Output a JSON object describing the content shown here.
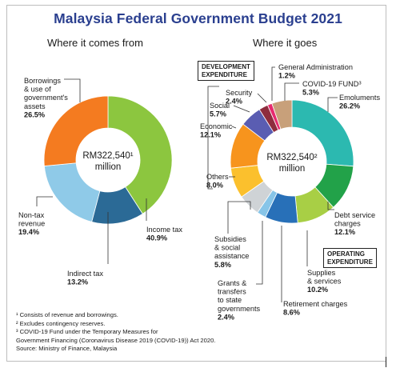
{
  "title": "Malaysia Federal Government Budget 2021",
  "colors": {
    "title": "#2a3f8f"
  },
  "chart_data": [
    {
      "type": "pie",
      "donut": true,
      "subtitle": "Where it comes from",
      "center_label": "RM322,540¹",
      "center_sub": "million",
      "slices": [
        {
          "name": "Income tax",
          "value": 40.9,
          "label_value": "40.9%",
          "color": "#8cc63f"
        },
        {
          "name": "Indirect tax",
          "value": 13.2,
          "label_value": "13.2%",
          "color": "#2b6a96"
        },
        {
          "name": "Non-tax revenue",
          "value": 19.4,
          "label_value": "19.4%",
          "color": "#8fcae8"
        },
        {
          "name": "Borrowings & use of government's assets",
          "value": 26.5,
          "label_value": "26.5%",
          "color": "#f47b20"
        }
      ]
    },
    {
      "type": "pie",
      "donut": true,
      "subtitle": "Where it goes",
      "center_label": "RM322,540²",
      "center_sub": "million",
      "group_labels": [
        "DEVELOPMENT EXPENDITURE",
        "OPERATING EXPENDITURE"
      ],
      "slices": [
        {
          "name": "Emoluments",
          "value": 26.2,
          "label_value": "26.2%",
          "color": "#2cb9b0"
        },
        {
          "name": "Debt service charges",
          "value": 12.1,
          "label_value": "12.1%",
          "color": "#22a249"
        },
        {
          "name": "Supplies & services",
          "value": 10.2,
          "label_value": "10.2%",
          "color": "#a8cf45"
        },
        {
          "name": "Retirement charges",
          "value": 8.6,
          "label_value": "8.6%",
          "color": "#2870b8"
        },
        {
          "name": "Grants & transfers to state governments",
          "value": 2.4,
          "label_value": "2.4%",
          "color": "#87c5e8"
        },
        {
          "name": "Subsidies & social assistance",
          "value": 5.8,
          "label_value": "5.8%",
          "color": "#cfd3d6"
        },
        {
          "name": "Others",
          "value": 8.0,
          "label_value": "8.0%",
          "color": "#fbc02d"
        },
        {
          "name": "Economic",
          "value": 12.1,
          "label_value": "12.1%",
          "color": "#f7941d"
        },
        {
          "name": "Social",
          "value": 5.7,
          "label_value": "5.7%",
          "color": "#5a5db2"
        },
        {
          "name": "Security",
          "value": 2.4,
          "label_value": "2.4%",
          "color": "#8e2c3e"
        },
        {
          "name": "General Administration",
          "value": 1.2,
          "label_value": "1.2%",
          "color": "#e62b6f"
        },
        {
          "name": "COVID-19 FUND³",
          "value": 5.3,
          "label_value": "5.3%",
          "color": "#c8a07a"
        }
      ]
    }
  ],
  "footnotes": [
    "¹ Consists of revenue and borrowings.",
    "² Excludes contingency reserves.",
    "³ COVID-19 Fund under the Temporary Measures for",
    "Government Financing (Coronavirus Disease 2019 (COVID-19)) Act 2020.",
    "Source: Ministry of Finance, Malaysia"
  ]
}
